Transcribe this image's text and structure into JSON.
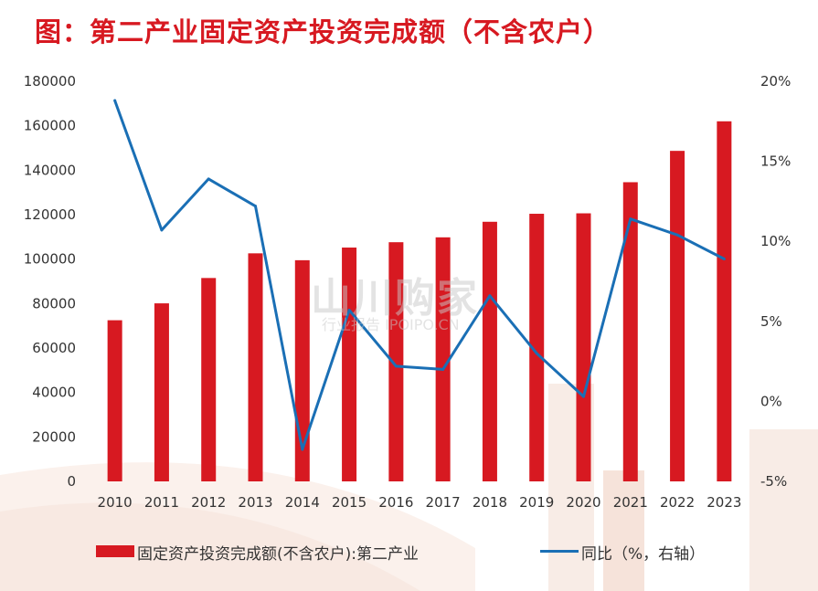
{
  "title": "图：第二产业固定资产投资完成额（不含农户）",
  "watermark": {
    "main": "山川购家",
    "sub": "行业报告 IPOIPO.CN"
  },
  "legend": {
    "bar_label": "固定资产投资完成额(不含农户):第二产业",
    "line_label": "同比（%，右轴）"
  },
  "colors": {
    "bar": "#d71921",
    "line": "#1a6fb5",
    "title": "#d71921"
  },
  "chart_data": {
    "type": "bar",
    "title": "图：第二产业固定资产投资完成额（不含农户）",
    "categories": [
      "2010",
      "2011",
      "2012",
      "2013",
      "2014",
      "2015",
      "2016",
      "2017",
      "2018",
      "2019",
      "2020",
      "2021",
      "2022",
      "2023"
    ],
    "series": [
      {
        "name": "固定资产投资完成额(不含农户):第二产业",
        "type": "bar",
        "axis": "left",
        "values": [
          72500,
          80100,
          91500,
          102600,
          99500,
          105200,
          107600,
          109800,
          116800,
          120400,
          120600,
          134600,
          148700,
          162000
        ]
      },
      {
        "name": "同比（%，右轴）",
        "type": "line",
        "axis": "right",
        "values": [
          18.8,
          10.7,
          13.9,
          12.2,
          -3.0,
          5.7,
          2.2,
          2.0,
          6.6,
          3.0,
          0.3,
          11.4,
          10.4,
          8.9
        ]
      }
    ],
    "left_axis": {
      "ylim": [
        0,
        180000
      ],
      "ticks": [
        "0",
        "20000",
        "40000",
        "60000",
        "80000",
        "100000",
        "120000",
        "140000",
        "160000",
        "180000"
      ]
    },
    "right_axis": {
      "ylim": [
        -5,
        20
      ],
      "ticks": [
        "-5%",
        "0%",
        "5%",
        "10%",
        "15%",
        "20%"
      ]
    },
    "grid": false,
    "legend_position": "bottom"
  }
}
